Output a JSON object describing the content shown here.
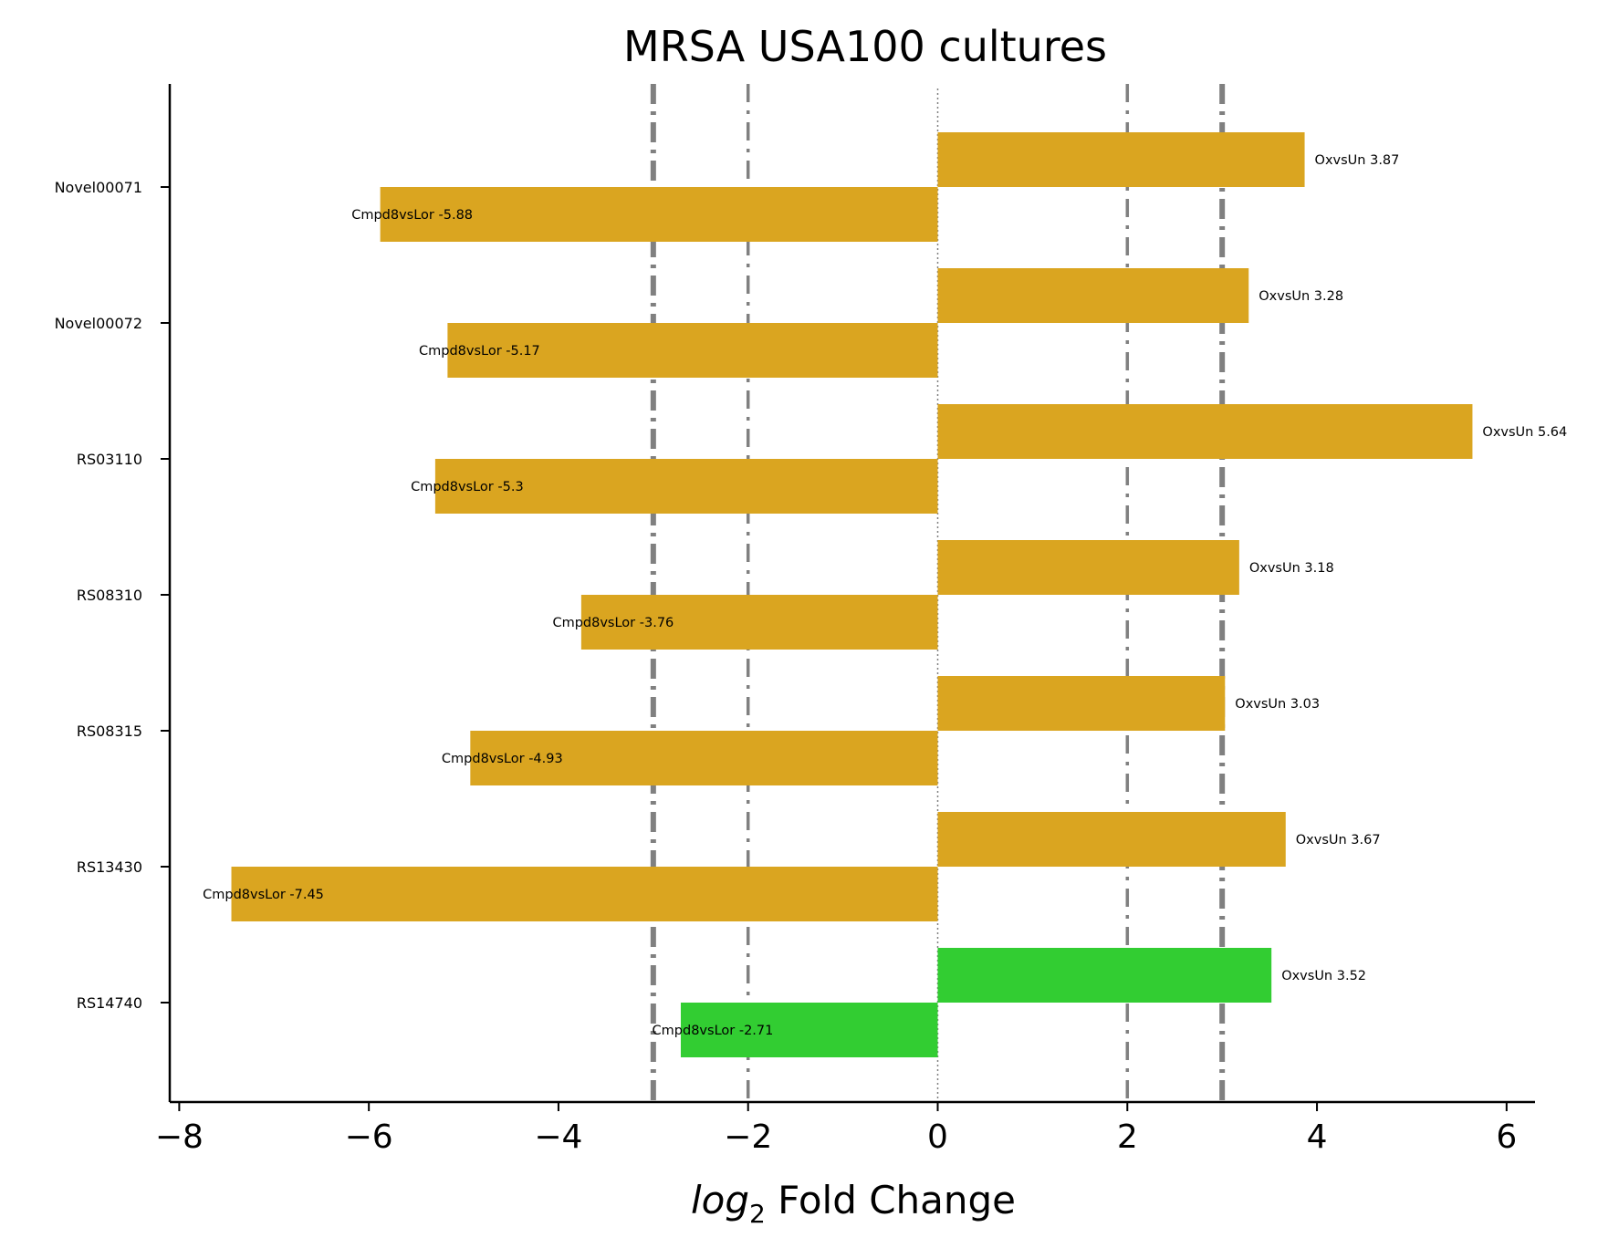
{
  "chart_data": {
    "type": "bar",
    "orientation": "horizontal",
    "title": "MRSA USA100 cultures",
    "xlabel": "log2 Fold Change",
    "xlabel_parts": {
      "italic": "log",
      "sub": "2",
      "rest": " Fold Change"
    },
    "ylabel": "",
    "xlim": [
      -8.1,
      6.3
    ],
    "xticks": [
      -8,
      -6,
      -4,
      -2,
      0,
      2,
      4,
      6
    ],
    "xtick_labels": [
      "−8",
      "−6",
      "−4",
      "−2",
      "0",
      "2",
      "4",
      "6"
    ],
    "categories": [
      "Novel00071",
      "Novel00072",
      "RS03110",
      "RS08310",
      "RS08315",
      "RS13430",
      "RS14740"
    ],
    "series": [
      {
        "role": "upper",
        "values": [
          3.87,
          3.28,
          5.64,
          3.18,
          3.03,
          3.67,
          3.52
        ],
        "labels": [
          "OxvsUn 3.87",
          "OxvsUn 3.28",
          "OxvsUn 5.64",
          "OxvsUn 3.18",
          "OxvsUn 3.03",
          "OxvsUn 3.67",
          "OxvsUn 3.52"
        ]
      },
      {
        "role": "lower",
        "values": [
          -5.88,
          -5.17,
          -5.3,
          -3.76,
          -4.93,
          -7.45,
          -2.71
        ],
        "labels": [
          "Cmpd8vsLor -5.88",
          "Cmpd8vsLor -5.17",
          "Cmpd8vsLor -5.3",
          "Cmpd8vsLor -3.76",
          "Cmpd8vsLor -4.93",
          "Cmpd8vsLor -7.45",
          "Cmpd8vsLor -2.71"
        ]
      }
    ],
    "bar_colors": [
      "#daa520",
      "#daa520",
      "#daa520",
      "#daa520",
      "#daa520",
      "#daa520",
      "#32cd32"
    ],
    "reference_lines": [
      {
        "x": -3,
        "style": "dashdot-thick",
        "color": "#808080"
      },
      {
        "x": -2,
        "style": "dashdot",
        "color": "#808080"
      },
      {
        "x": 0,
        "style": "dotted",
        "color": "#808080"
      },
      {
        "x": 2,
        "style": "dashdot",
        "color": "#808080"
      },
      {
        "x": 3,
        "style": "dashdot-thick",
        "color": "#808080"
      }
    ],
    "grid": false,
    "legend": "none"
  }
}
